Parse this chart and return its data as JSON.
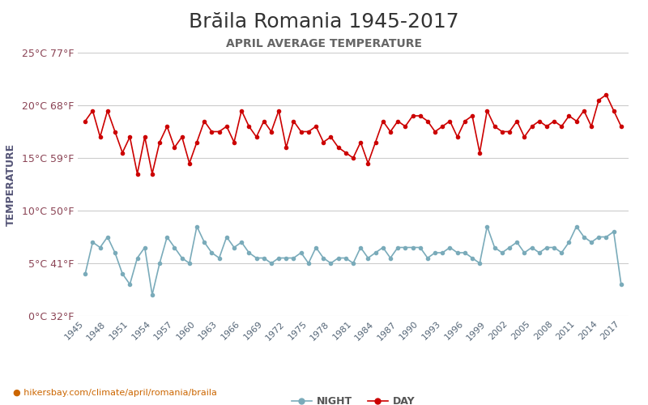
{
  "title": "Brăila Romania 1945-2017",
  "subtitle": "APRIL AVERAGE TEMPERATURE",
  "ylabel": "TEMPERATURE",
  "xlabel_url": "hikersbay.com/climate/april/romania/braila",
  "ylim": [
    0,
    25
  ],
  "yticks_c": [
    0,
    5,
    10,
    15,
    20,
    25
  ],
  "ytick_labels": [
    "0°C 32°F",
    "5°C 41°F",
    "10°C 50°F",
    "15°C 59°F",
    "20°C 68°F",
    "25°C 77°F"
  ],
  "years_ticks": [
    1945,
    1948,
    1951,
    1954,
    1957,
    1960,
    1963,
    1966,
    1969,
    1972,
    1975,
    1978,
    1981,
    1984,
    1987,
    1990,
    1993,
    1996,
    1999,
    2002,
    2005,
    2008,
    2011,
    2014,
    2017
  ],
  "years_full": [
    1945,
    1946,
    1947,
    1948,
    1949,
    1950,
    1951,
    1952,
    1953,
    1954,
    1955,
    1956,
    1957,
    1958,
    1959,
    1960,
    1961,
    1962,
    1963,
    1964,
    1965,
    1966,
    1967,
    1968,
    1969,
    1970,
    1971,
    1972,
    1973,
    1974,
    1975,
    1976,
    1977,
    1978,
    1979,
    1980,
    1981,
    1982,
    1983,
    1984,
    1985,
    1986,
    1987,
    1988,
    1989,
    1990,
    1991,
    1992,
    1993,
    1994,
    1995,
    1996,
    1997,
    1998,
    1999,
    2000,
    2001,
    2002,
    2003,
    2004,
    2005,
    2006,
    2007,
    2008,
    2009,
    2010,
    2011,
    2012,
    2013,
    2014,
    2015,
    2016,
    2017
  ],
  "day_full": [
    18.5,
    19.5,
    17.0,
    19.5,
    17.5,
    15.5,
    17.0,
    13.5,
    17.0,
    13.5,
    16.5,
    18.0,
    16.0,
    17.0,
    14.5,
    16.5,
    18.5,
    17.5,
    17.5,
    18.0,
    16.5,
    19.5,
    18.0,
    17.0,
    18.5,
    17.5,
    19.5,
    16.0,
    18.5,
    17.5,
    17.5,
    18.0,
    16.5,
    17.0,
    16.0,
    15.5,
    15.0,
    16.5,
    14.5,
    16.5,
    18.5,
    17.5,
    18.5,
    18.0,
    19.0,
    19.0,
    18.5,
    17.5,
    18.0,
    18.5,
    17.0,
    18.5,
    19.0,
    15.5,
    19.5,
    18.0,
    17.5,
    17.5,
    18.5,
    17.0,
    18.0,
    18.5,
    18.0,
    18.5,
    18.0,
    19.0,
    18.5,
    19.5,
    18.0,
    20.5,
    21.0,
    19.5,
    18.0
  ],
  "night_full": [
    4.0,
    7.0,
    6.5,
    7.5,
    6.0,
    4.0,
    3.0,
    5.5,
    6.5,
    2.0,
    5.0,
    7.5,
    6.5,
    5.5,
    5.0,
    8.5,
    7.0,
    6.0,
    5.5,
    7.5,
    6.5,
    7.0,
    6.0,
    5.5,
    5.5,
    5.0,
    5.5,
    5.5,
    5.5,
    6.0,
    5.0,
    6.5,
    5.5,
    5.0,
    5.5,
    5.5,
    5.0,
    6.5,
    5.5,
    6.0,
    6.5,
    5.5,
    6.5,
    6.5,
    6.5,
    6.5,
    5.5,
    6.0,
    6.0,
    6.5,
    6.0,
    6.0,
    5.5,
    5.0,
    8.5,
    6.5,
    6.0,
    6.5,
    7.0,
    6.0,
    6.5,
    6.0,
    6.5,
    6.5,
    6.0,
    7.0,
    8.5,
    7.5,
    7.0,
    7.5,
    7.5,
    8.0,
    3.0
  ],
  "day_color": "#cc0000",
  "night_color": "#7aabba",
  "title_color": "#333333",
  "tick_color": "#8b4455",
  "ylabel_color": "#555577",
  "grid_color": "#cccccc",
  "background_color": "#ffffff",
  "legend_night": "NIGHT",
  "legend_day": "DAY",
  "url_color": "#cc6600",
  "title_fontsize": 18,
  "subtitle_fontsize": 10,
  "tick_fontsize": 9,
  "ylabel_fontsize": 9
}
